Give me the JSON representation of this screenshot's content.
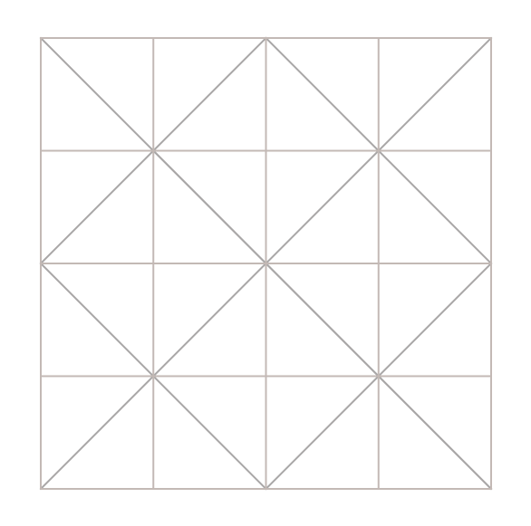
{
  "diagram": {
    "grid": {
      "columns": 4,
      "rows": 4
    },
    "diagonals": [
      {
        "from": [
          0,
          0
        ],
        "to": [
          4,
          4
        ]
      },
      {
        "from": [
          1,
          1
        ],
        "to": [
          4,
          4
        ]
      },
      {
        "from": [
          0,
          2
        ],
        "to": [
          2,
          4
        ]
      },
      {
        "from": [
          2,
          0
        ],
        "to": [
          4,
          2
        ]
      },
      {
        "from": [
          0,
          2
        ],
        "to": [
          2,
          0
        ]
      },
      {
        "from": [
          0,
          4
        ],
        "to": [
          4,
          0
        ]
      },
      {
        "from": [
          2,
          4
        ],
        "to": [
          4,
          2
        ]
      }
    ],
    "colors": {
      "background": "#ffffff",
      "grid_line": "#c3b9b5",
      "diagonal_line": "#a9a7a7"
    }
  }
}
